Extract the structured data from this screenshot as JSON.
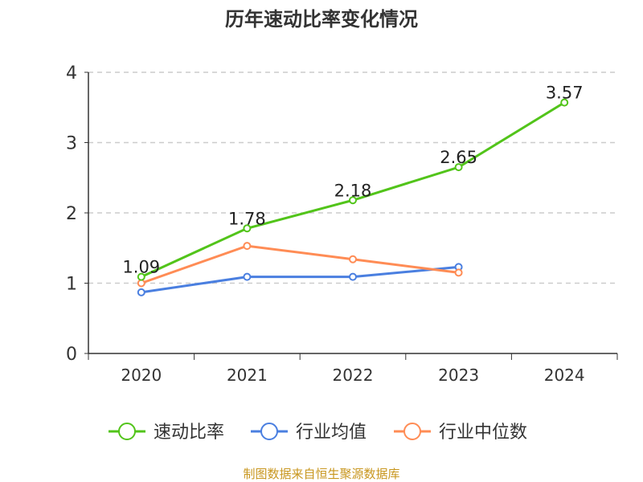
{
  "chart_data": {
    "type": "line",
    "title": "历年速动比率变化情况",
    "categories": [
      "2020",
      "2021",
      "2022",
      "2023",
      "2024"
    ],
    "ylim": [
      0,
      4
    ],
    "yticks": [
      0,
      1,
      2,
      3,
      4
    ],
    "grid": true,
    "legend_position": "bottom",
    "series": [
      {
        "name": "速动比率",
        "color": "#52c41a",
        "values": [
          1.09,
          1.78,
          2.18,
          2.65,
          3.57
        ],
        "labels": [
          "1.09",
          "1.78",
          "2.18",
          "2.65",
          "3.57"
        ]
      },
      {
        "name": "行业均值",
        "color": "#4a7fe0",
        "values": [
          0.87,
          1.09,
          1.09,
          1.23,
          null
        ]
      },
      {
        "name": "行业中位数",
        "color": "#ff8c55",
        "values": [
          1.0,
          1.53,
          1.34,
          1.15,
          null
        ]
      }
    ]
  },
  "footer": {
    "source": "制图数据来自恒生聚源数据库",
    "color": "#c8961e"
  }
}
